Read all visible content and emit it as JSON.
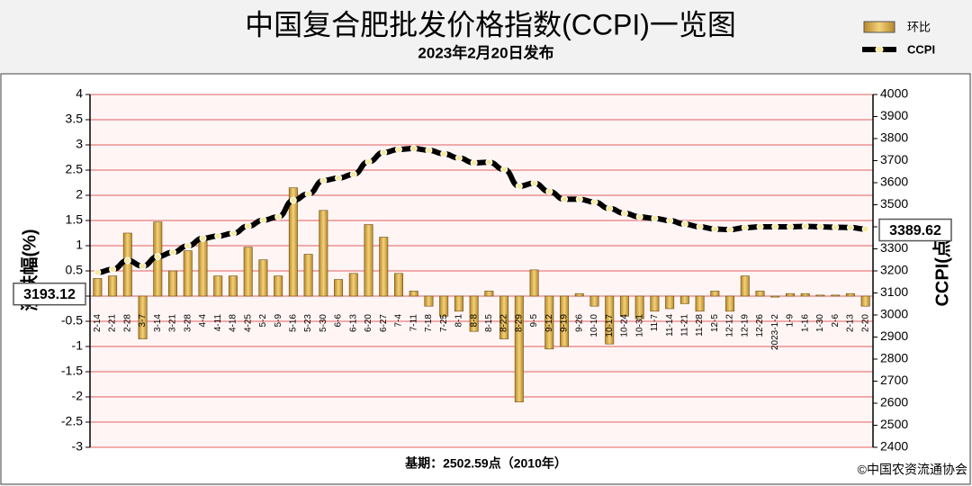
{
  "title": "中国复合肥批发价格指数(CCPI)一览图",
  "subtitle": "2023年2月20日发布",
  "footer_note": "基期：2502.59点（2010年）",
  "copyright": "©中国农资流通协会",
  "chart_data": {
    "type": "bar_line",
    "categories": [
      "2-14",
      "2-21",
      "2-28",
      "3-7",
      "3-14",
      "3-21",
      "3-28",
      "4-4",
      "4-11",
      "4-18",
      "4-25",
      "5-2",
      "5-9",
      "5-16",
      "5-23",
      "5-30",
      "6-6",
      "6-13",
      "6-20",
      "6-27",
      "7-4",
      "7-11",
      "7-18",
      "7-25",
      "8-1",
      "8-8",
      "8-15",
      "8-22",
      "8-29",
      "9-5",
      "9-12",
      "9-19",
      "9-26",
      "10-10",
      "10-17",
      "10-24",
      "10-31",
      "11-7",
      "11-14",
      "11-21",
      "11-28",
      "12-5",
      "12-12",
      "12-19",
      "12-26",
      "2023-1-2",
      "1-9",
      "1-16",
      "1-30",
      "2-6",
      "2-13",
      "2-20"
    ],
    "series": [
      {
        "name": "环比",
        "type": "bar",
        "axis": "y",
        "color": "#d9a53a",
        "values": [
          0.35,
          0.4,
          1.25,
          -0.85,
          1.47,
          0.5,
          0.9,
          1.1,
          0.4,
          0.4,
          0.97,
          0.72,
          0.4,
          2.15,
          0.83,
          1.7,
          0.33,
          0.45,
          1.42,
          1.17,
          0.45,
          0.1,
          -0.2,
          -0.4,
          -0.3,
          -0.7,
          0.1,
          -0.85,
          -2.1,
          0.52,
          -1.05,
          -1.0,
          0.05,
          -0.2,
          -0.95,
          -0.4,
          -0.45,
          -0.3,
          -0.25,
          -0.15,
          -0.3,
          0.1,
          -0.3,
          0.4,
          0.1,
          -0.02,
          0.05,
          0.05,
          0.02,
          0.02,
          0.05,
          -0.2
        ]
      },
      {
        "name": "CCPI",
        "type": "line",
        "axis": "y2",
        "color": "#000000",
        "values": [
          3193.12,
          3207,
          3247,
          3222,
          3265,
          3284,
          3314,
          3348,
          3358,
          3370,
          3403,
          3430,
          3445,
          3520,
          3549,
          3610,
          3621,
          3638,
          3695,
          3737,
          3751,
          3755,
          3747,
          3731,
          3712,
          3690,
          3693,
          3660,
          3584,
          3598,
          3560,
          3525,
          3525,
          3512,
          3483,
          3461,
          3445,
          3438,
          3428,
          3412,
          3400,
          3390,
          3387,
          3396,
          3400,
          3400,
          3400,
          3402,
          3400,
          3398,
          3397,
          3389.62
        ]
      }
    ],
    "y_label": "涨跌幅(%)",
    "y2_label": "CCPI(点)",
    "ylim": [
      -3,
      4
    ],
    "yticks": [
      4,
      3.5,
      3,
      2.5,
      2,
      1.5,
      1,
      0.5,
      0,
      -0.5,
      -1,
      -1.5,
      -2,
      -2.5,
      -3
    ],
    "y2lim": [
      2400,
      4000
    ],
    "y2ticks": [
      4000,
      3900,
      3800,
      3700,
      3600,
      3500,
      3400,
      3300,
      3200,
      3100,
      3000,
      2900,
      2800,
      2700,
      2600,
      2500,
      2400
    ],
    "grid": true,
    "grid_color": "#e06060"
  }
}
